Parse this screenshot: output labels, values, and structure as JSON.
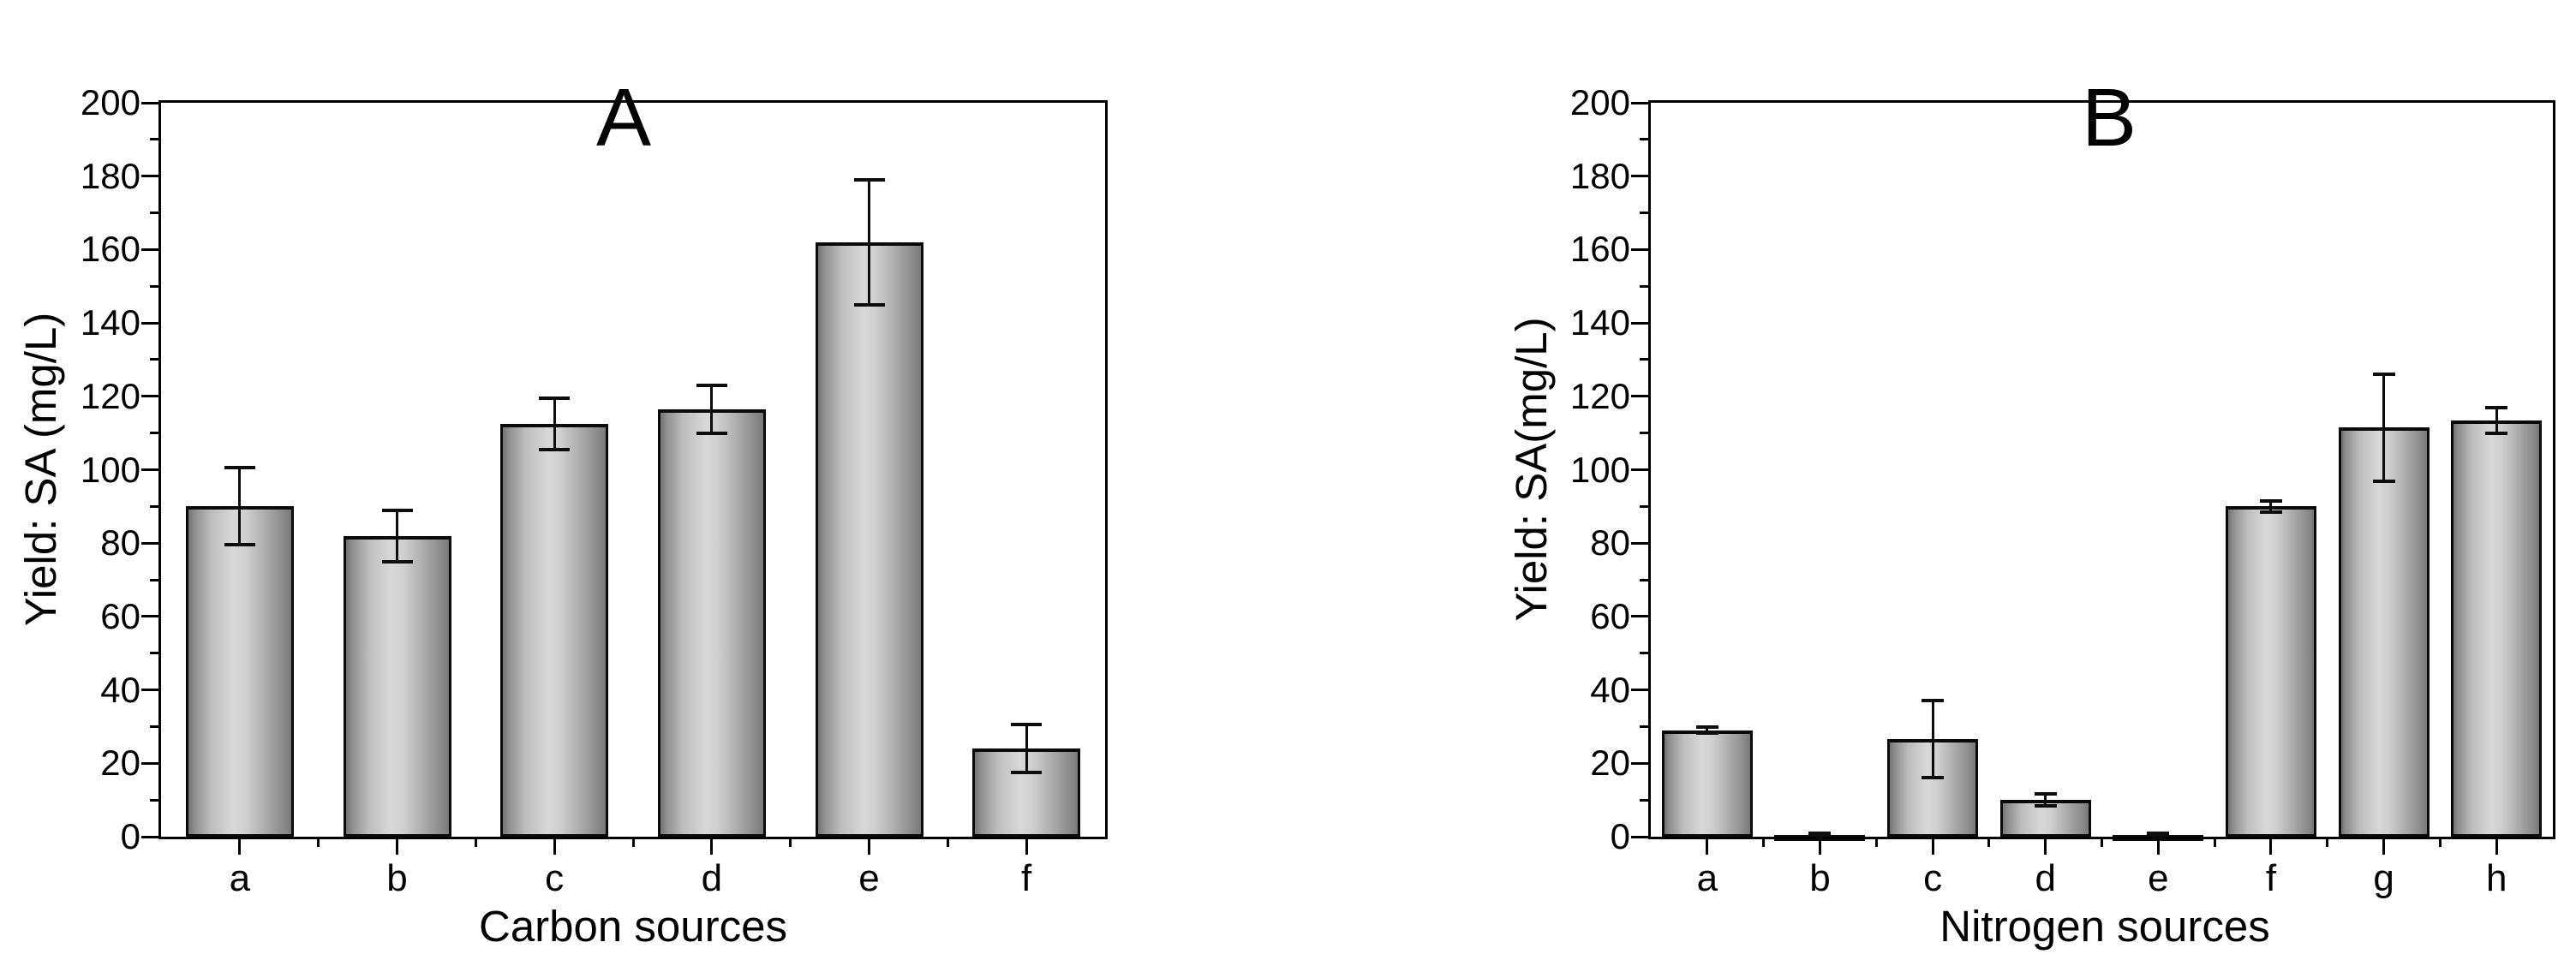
{
  "figure": {
    "background": "#ffffff",
    "text_color": "#000000",
    "bar_edge_color": "#0a0a0a",
    "bar_face_light": "#d8d8d8",
    "bar_face_dark": "#787878",
    "error_bar_color": "#0d0d0d"
  },
  "chart_data": [
    {
      "type": "bar",
      "title": "A",
      "xlabel": "Carbon sources",
      "ylabel": "Yield: SA (mg/L)",
      "categories": [
        "a",
        "b",
        "c",
        "d",
        "e",
        "f"
      ],
      "values": [
        90,
        82,
        112.5,
        116.5,
        162,
        24
      ],
      "errors": [
        10.5,
        7,
        7,
        6.5,
        17,
        6.5
      ],
      "ylim": [
        0,
        200
      ],
      "yticks": [
        0,
        20,
        40,
        60,
        80,
        100,
        120,
        140,
        160,
        180,
        200
      ],
      "ytick_minor_step": 10,
      "grid": false,
      "legend": null
    },
    {
      "type": "bar",
      "title": "B",
      "xlabel": "Nitrogen sources",
      "ylabel": "Yield: SA(mg/L)",
      "categories": [
        "a",
        "b",
        "c",
        "d",
        "e",
        "f",
        "g",
        "h"
      ],
      "values": [
        29,
        0.5,
        26.5,
        10,
        0.5,
        90,
        111.5,
        113.5
      ],
      "errors": [
        0.8,
        0.4,
        10.5,
        1.6,
        0.4,
        1.5,
        14.6,
        3.5
      ],
      "ylim": [
        0,
        200
      ],
      "yticks": [
        0,
        20,
        40,
        60,
        80,
        100,
        120,
        140,
        160,
        180,
        200
      ],
      "ytick_minor_step": 10,
      "grid": false,
      "legend": null
    }
  ]
}
